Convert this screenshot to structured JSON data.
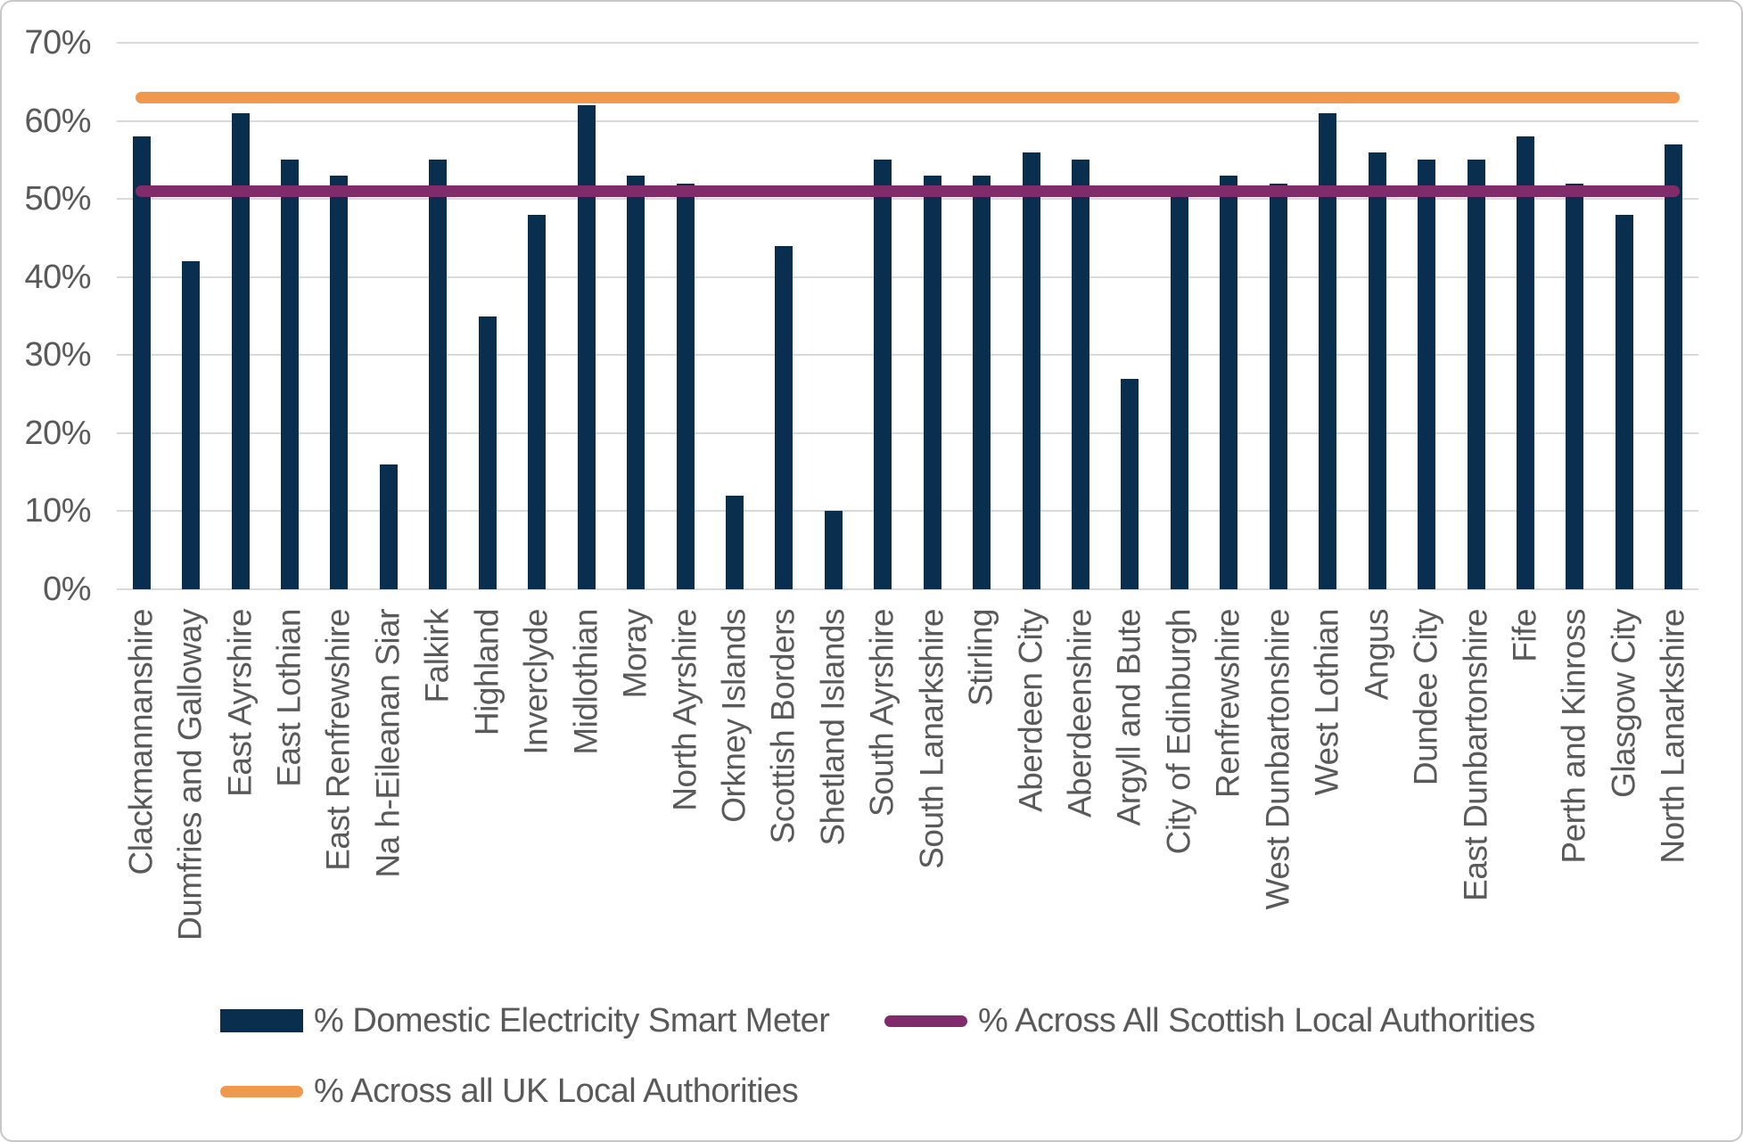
{
  "chart_data": {
    "type": "bar",
    "title": "",
    "categories": [
      "Clackmannanshire",
      "Dumfries and Galloway",
      "East Ayrshire",
      "East Lothian",
      "East Renfrewshire",
      "Na h-Eileanan Siar",
      "Falkirk",
      "Highland",
      "Inverclyde",
      "Midlothian",
      "Moray",
      "North Ayrshire",
      "Orkney Islands",
      "Scottish Borders",
      "Shetland Islands",
      "South Ayrshire",
      "South Lanarkshire",
      "Stirling",
      "Aberdeen City",
      "Aberdeenshire",
      "Argyll and Bute",
      "City of Edinburgh",
      "Renfrewshire",
      "West Dunbartonshire",
      "West Lothian",
      "Angus",
      "Dundee City",
      "East Dunbartonshire",
      "Fife",
      "Perth and Kinross",
      "Glasgow City",
      "North Lanarkshire"
    ],
    "series": [
      {
        "name": "% Domestic Electricity Smart Meter",
        "type": "bar",
        "color": "#0a2f4e",
        "values": [
          58,
          42,
          61,
          55,
          53,
          16,
          55,
          35,
          48,
          62,
          53,
          52,
          12,
          44,
          10,
          55,
          53,
          53,
          56,
          55,
          27,
          51,
          53,
          52,
          61,
          56,
          55,
          55,
          58,
          52,
          48,
          57
        ]
      },
      {
        "name": "% Across All Scottish Local Authorities",
        "type": "line",
        "color": "#802c6b",
        "value": 51
      },
      {
        "name": "% Across all UK Local Authorities",
        "type": "line",
        "color": "#f0994e",
        "value": 63
      }
    ],
    "ylim": [
      0,
      70
    ],
    "ytick_step": 10,
    "yticks": [
      "0%",
      "10%",
      "20%",
      "30%",
      "40%",
      "50%",
      "60%",
      "70%"
    ],
    "grid": true,
    "legend_position": "bottom"
  },
  "legend": {
    "items": [
      {
        "label": "% Domestic Electricity Smart Meter",
        "swatch": "bar-rect"
      },
      {
        "label": "% Across All Scottish Local Authorities",
        "swatch": "line"
      },
      {
        "label": "% Across all UK Local Authorities",
        "swatch": "line"
      }
    ]
  },
  "colors": {
    "bar": "#0a2f4e",
    "scottish_line": "#802c6b",
    "uk_line": "#f0994e",
    "gridline": "#d9d9d9",
    "axis_text": "#595959",
    "border": "#c8c6c6",
    "background": "#ffffff"
  }
}
